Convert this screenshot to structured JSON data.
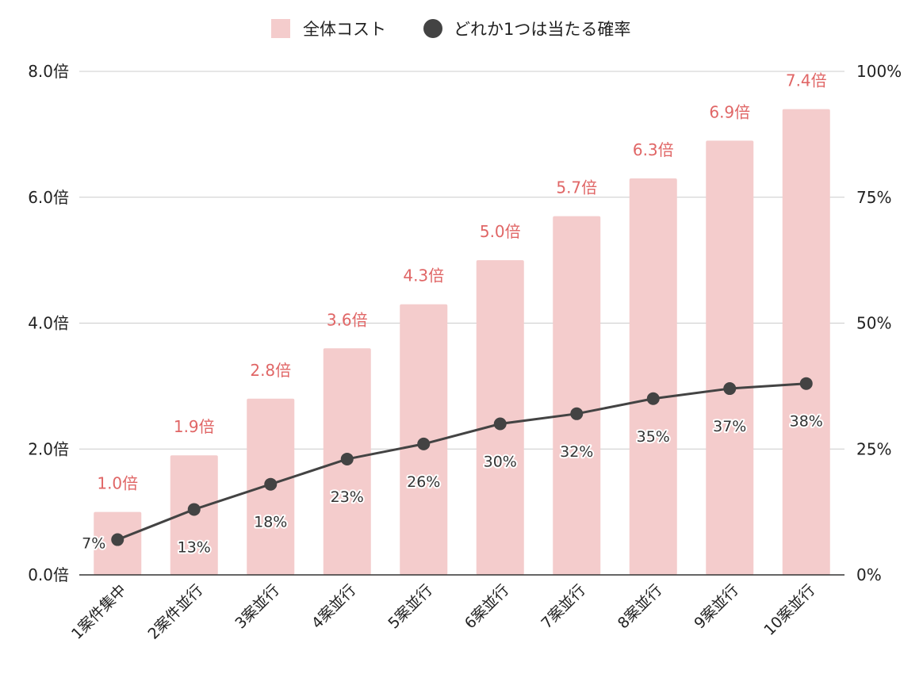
{
  "chart_data": {
    "type": "bar",
    "categories": [
      "1案件集中",
      "2案件並行",
      "3案並行",
      "4案並行",
      "5案並行",
      "6案並行",
      "7案並行",
      "8案並行",
      "9案並行",
      "10案並行"
    ],
    "series": [
      {
        "name": "全体コスト",
        "type": "bar",
        "axis": "left",
        "color": "#f4cccc",
        "label_color": "#e06666",
        "values": [
          1.0,
          1.9,
          2.8,
          3.6,
          4.3,
          5.0,
          5.7,
          6.3,
          6.9,
          7.4
        ],
        "labels": [
          "1.0倍",
          "1.9倍",
          "2.8倍",
          "3.6倍",
          "4.3倍",
          "5.0倍",
          "5.7倍",
          "6.3倍",
          "6.9倍",
          "7.4倍"
        ]
      },
      {
        "name": "どれか1つは当たる確率",
        "type": "line",
        "axis": "right",
        "color": "#434343",
        "values": [
          7,
          13,
          18,
          23,
          26,
          30,
          32,
          35,
          37,
          38
        ],
        "labels": [
          "7%",
          "13%",
          "18%",
          "23%",
          "26%",
          "30%",
          "32%",
          "35%",
          "37%",
          "38%"
        ]
      }
    ],
    "y_left": {
      "min": 0,
      "max": 8,
      "ticks": [
        0,
        2,
        4,
        6,
        8
      ],
      "tick_labels": [
        "0.0倍",
        "2.0倍",
        "4.0倍",
        "6.0倍",
        "8.0倍"
      ]
    },
    "y_right": {
      "min": 0,
      "max": 100,
      "ticks": [
        0,
        25,
        50,
        75,
        100
      ],
      "tick_labels": [
        "0%",
        "25%",
        "50%",
        "75%",
        "100%"
      ]
    },
    "legend_position": "top-center",
    "grid": true,
    "title": "",
    "xlabel": "",
    "ylabel": ""
  }
}
